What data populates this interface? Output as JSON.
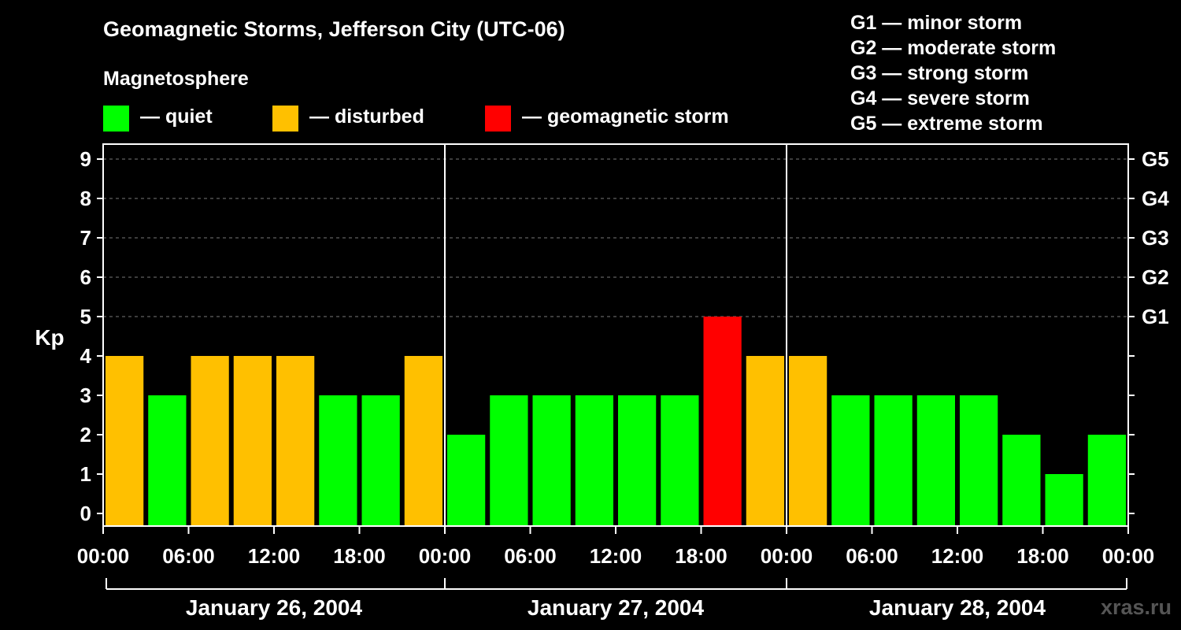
{
  "chart_data": {
    "type": "bar",
    "title": "Geomagnetic Storms, Jefferson City (UTC-06)",
    "ylabel": "Kp",
    "ylim": [
      0,
      9
    ],
    "y_ticks": [
      "0",
      "1",
      "2",
      "3",
      "4",
      "5",
      "6",
      "7",
      "8",
      "9"
    ],
    "right_axis_ticks": [
      {
        "kp": 5,
        "label": "G1"
      },
      {
        "kp": 6,
        "label": "G2"
      },
      {
        "kp": 7,
        "label": "G3"
      },
      {
        "kp": 8,
        "label": "G4"
      },
      {
        "kp": 9,
        "label": "G5"
      }
    ],
    "x_tick_labels": [
      "00:00",
      "06:00",
      "12:00",
      "18:00",
      "00:00",
      "06:00",
      "12:00",
      "18:00",
      "00:00",
      "06:00",
      "12:00",
      "18:00",
      "00:00"
    ],
    "days": [
      "January 26, 2004",
      "January 27, 2004",
      "January 28, 2004"
    ],
    "interval_hours": 3,
    "values": [
      4,
      3,
      4,
      4,
      4,
      3,
      3,
      4,
      2,
      3,
      3,
      3,
      3,
      3,
      5,
      4,
      4,
      3,
      3,
      3,
      3,
      2,
      1,
      2
    ],
    "grid": "dashed horizontal at each Kp level 5-9",
    "color_scale": {
      "quiet": "#00ff00",
      "disturbed": "#ffc000",
      "storm": "#ff0000"
    }
  },
  "legend": {
    "heading": "Magnetosphere",
    "items": [
      {
        "label": "— quiet",
        "color": "#00ff00"
      },
      {
        "label": "— disturbed",
        "color": "#ffc000"
      },
      {
        "label": "— geomagnetic storm",
        "color": "#ff0000"
      }
    ]
  },
  "storm_levels": [
    "G1 — minor storm",
    "G2 — moderate storm",
    "G3 — strong storm",
    "G4 — severe storm",
    "G5 — extreme storm"
  ],
  "watermark": "xras.ru"
}
